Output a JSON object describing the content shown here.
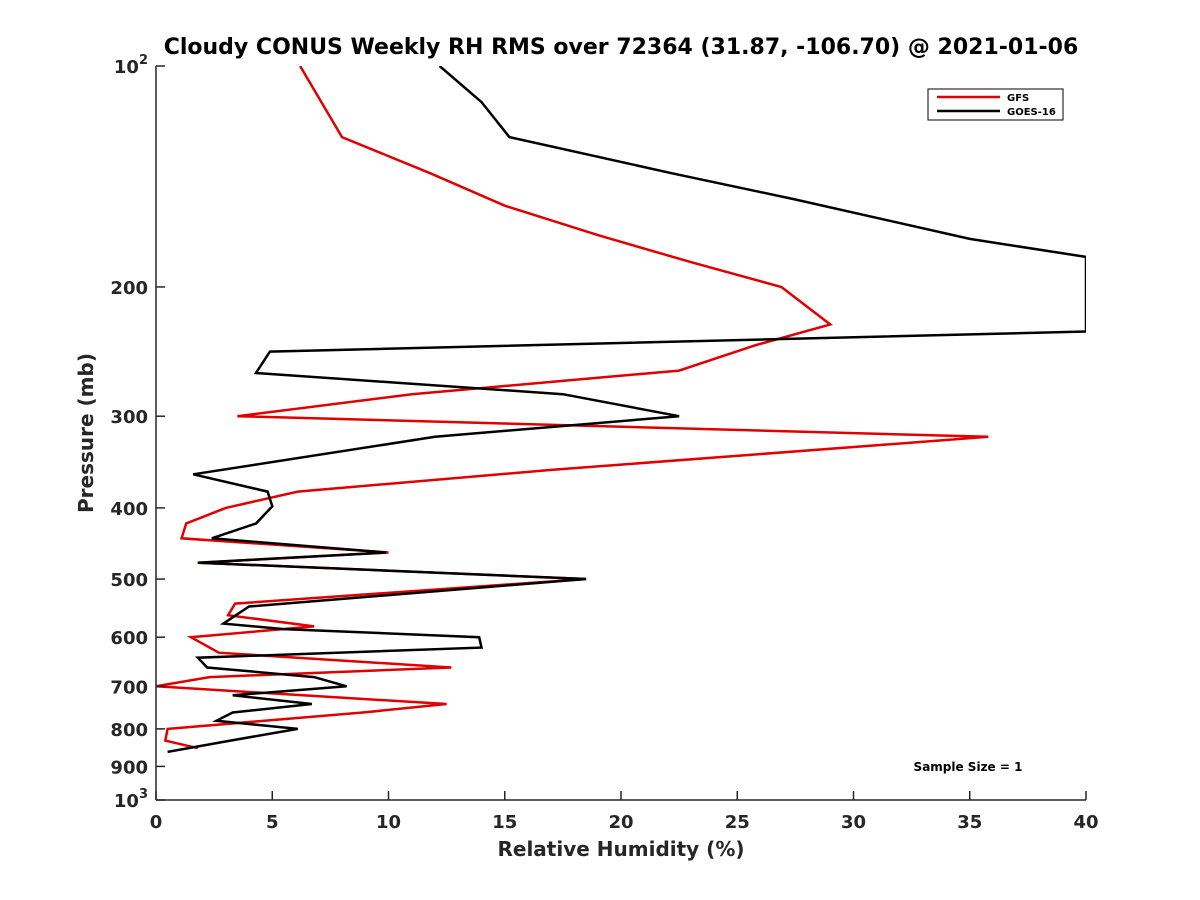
{
  "chart_data": {
    "type": "line",
    "title": "Cloudy CONUS Weekly RH RMS over 72364 (31.87, -106.70) @ 2021-01-06",
    "xlabel": "Relative Humidity (%)",
    "ylabel": "Pressure (mb)",
    "xlim": [
      0,
      40
    ],
    "ylim": [
      100,
      1000
    ],
    "y_scale": "log",
    "y_reversed": true,
    "grid": false,
    "legend_position": "top-right",
    "x_ticks": [
      "0",
      "5",
      "10",
      "15",
      "20",
      "25",
      "30",
      "35",
      "40"
    ],
    "y_ticks": [
      {
        "value": 100,
        "base": "10",
        "exp": "2",
        "label": ""
      },
      {
        "value": 200,
        "label": "200"
      },
      {
        "value": 300,
        "label": "300"
      },
      {
        "value": 400,
        "label": "400"
      },
      {
        "value": 500,
        "label": "500"
      },
      {
        "value": 600,
        "label": "600"
      },
      {
        "value": 700,
        "label": "700"
      },
      {
        "value": 800,
        "label": "800"
      },
      {
        "value": 900,
        "label": "900"
      },
      {
        "value": 1000,
        "base": "10",
        "exp": "3",
        "label": ""
      }
    ],
    "annotation": "Sample Size = 1",
    "series": [
      {
        "name": "GFS",
        "color": "#e00000",
        "points": [
          [
            6.2,
            100
          ],
          [
            8.0,
            125
          ],
          [
            11.8,
            140
          ],
          [
            15.0,
            155
          ],
          [
            19.0,
            170
          ],
          [
            23.0,
            185
          ],
          [
            26.9,
            200
          ],
          [
            29.0,
            225
          ],
          [
            25.8,
            240
          ],
          [
            22.5,
            260
          ],
          [
            11.0,
            280
          ],
          [
            3.5,
            300
          ],
          [
            35.8,
            320
          ],
          [
            17.0,
            355
          ],
          [
            6.1,
            380
          ],
          [
            3.0,
            400
          ],
          [
            1.3,
            420
          ],
          [
            1.1,
            440
          ],
          [
            10.0,
            460
          ],
          [
            1.8,
            475
          ],
          [
            18.5,
            500
          ],
          [
            3.4,
            540
          ],
          [
            3.1,
            560
          ],
          [
            6.8,
            580
          ],
          [
            1.5,
            600
          ],
          [
            2.7,
            630
          ],
          [
            12.7,
            660
          ],
          [
            2.3,
            680
          ],
          [
            0,
            700
          ],
          [
            12.5,
            740
          ],
          [
            8.9,
            760
          ],
          [
            0.5,
            800
          ],
          [
            0.4,
            830
          ],
          [
            1.8,
            850
          ]
        ]
      },
      {
        "name": "GOES-16",
        "color": "#000000",
        "points": [
          [
            12.2,
            100
          ],
          [
            14.0,
            112
          ],
          [
            15.2,
            125
          ],
          [
            22.2,
            140
          ],
          [
            27.5,
            152
          ],
          [
            35.0,
            172
          ],
          [
            40.0,
            182
          ],
          [
            40.0,
            230
          ],
          [
            4.9,
            245
          ],
          [
            4.3,
            262
          ],
          [
            17.5,
            280
          ],
          [
            22.5,
            300
          ],
          [
            12.0,
            320
          ],
          [
            1.6,
            360
          ],
          [
            4.8,
            380
          ],
          [
            5.0,
            398
          ],
          [
            4.3,
            420
          ],
          [
            2.4,
            440
          ],
          [
            9.9,
            460
          ],
          [
            1.8,
            475
          ],
          [
            18.5,
            500
          ],
          [
            4.0,
            545
          ],
          [
            2.9,
            575
          ],
          [
            5.5,
            585
          ],
          [
            13.9,
            600
          ],
          [
            14.0,
            620
          ],
          [
            1.8,
            640
          ],
          [
            2.2,
            660
          ],
          [
            6.8,
            680
          ],
          [
            8.2,
            700
          ],
          [
            3.3,
            720
          ],
          [
            6.7,
            740
          ],
          [
            3.3,
            760
          ],
          [
            2.6,
            780
          ],
          [
            6.1,
            800
          ],
          [
            3.2,
            830
          ],
          [
            0.5,
            860
          ]
        ]
      }
    ]
  }
}
